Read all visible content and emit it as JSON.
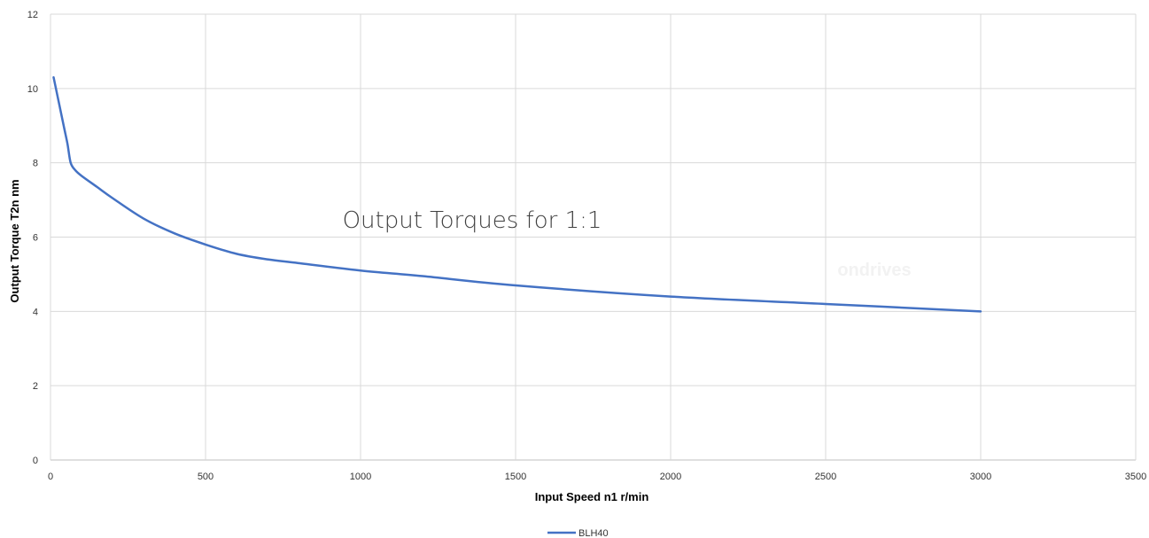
{
  "chart_data": {
    "type": "line",
    "title": "Output Torques for 1:1",
    "xlabel": "Input Speed n1 r/min",
    "ylabel": "Output Torque T2n nm",
    "xlim": [
      0,
      3500
    ],
    "ylim": [
      0,
      12
    ],
    "x_ticks": [
      "0",
      "500",
      "1000",
      "1500",
      "2000",
      "2500",
      "3000",
      "3500"
    ],
    "y_ticks": [
      "0",
      "2",
      "4",
      "6",
      "8",
      "10",
      "12"
    ],
    "grid": true,
    "legend_position": "bottom",
    "watermark": "ondrives",
    "series": [
      {
        "name": "BLH40",
        "color": "#4472C4",
        "x": [
          10,
          30,
          45,
          55,
          65,
          80,
          100,
          150,
          200,
          300,
          400,
          500,
          600,
          700,
          800,
          1000,
          1200,
          1500,
          2000,
          2500,
          3000
        ],
        "y": [
          10.3,
          9.5,
          8.9,
          8.5,
          8.0,
          7.8,
          7.65,
          7.35,
          7.05,
          6.5,
          6.1,
          5.8,
          5.55,
          5.4,
          5.3,
          5.1,
          4.95,
          4.7,
          4.4,
          4.2,
          4.0
        ]
      }
    ]
  }
}
